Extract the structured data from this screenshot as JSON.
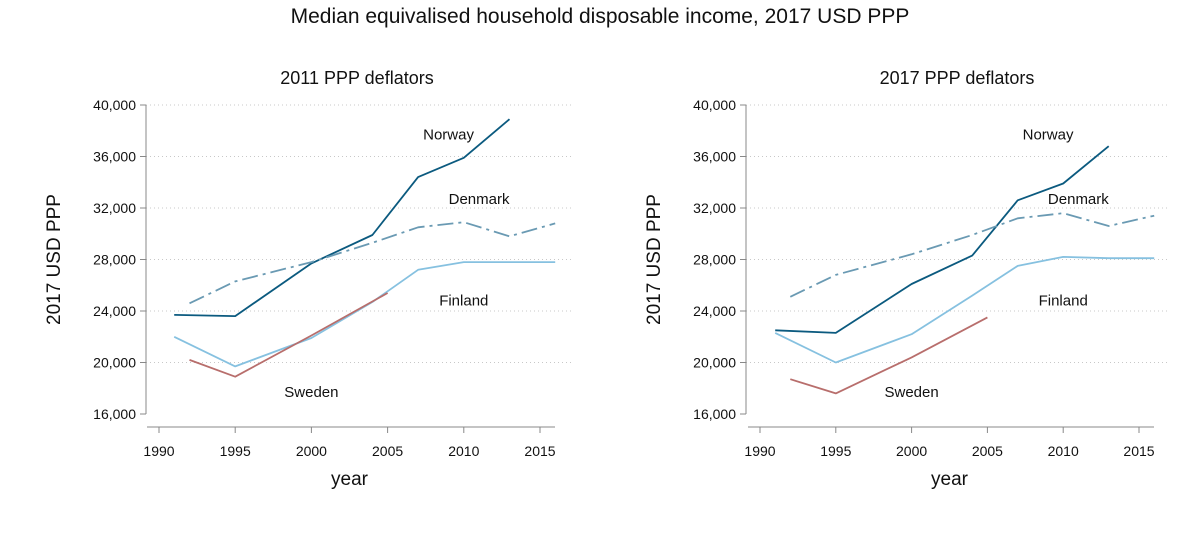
{
  "title": "Median equivalised household disposable income, 2017 USD PPP",
  "chart_data": [
    {
      "type": "line",
      "title": "2011 PPP deflators",
      "xlabel": "year",
      "ylabel": "2017 USD PPP",
      "xlim": [
        1989,
        2017
      ],
      "ylim": [
        16000,
        40000
      ],
      "xticks": [
        1990,
        1995,
        2000,
        2005,
        2010,
        2015
      ],
      "yticks": [
        16000,
        20000,
        24000,
        28000,
        32000,
        36000,
        40000
      ],
      "ytick_labels": [
        "16,000",
        "20,000",
        "24,000",
        "28,000",
        "32,000",
        "36,000",
        "40,000"
      ],
      "grid": "horizontal dotted",
      "series": [
        {
          "name": "Norway",
          "color": "#0b5a7f",
          "dash": "solid",
          "x": [
            1991,
            1995,
            2000,
            2004,
            2007,
            2010,
            2013
          ],
          "y": [
            23700,
            23600,
            27700,
            29900,
            34400,
            35900,
            38900
          ],
          "label_at": [
            2009,
            37700
          ]
        },
        {
          "name": "Denmark",
          "color": "#6a9ab3",
          "dash": "dashdot",
          "x": [
            1992,
            1995,
            2000,
            2004,
            2007,
            2010,
            2013,
            2016
          ],
          "y": [
            24600,
            26300,
            27800,
            29300,
            30500,
            30900,
            29800,
            30800
          ],
          "label_at": [
            2011,
            32700
          ]
        },
        {
          "name": "Finland",
          "color": "#86c1e0",
          "dash": "solid",
          "x": [
            1991,
            1995,
            2000,
            2004,
            2007,
            2010,
            2013,
            2016
          ],
          "y": [
            22000,
            19700,
            21900,
            24700,
            27200,
            27800,
            27800,
            27800
          ],
          "label_at": [
            2010,
            24800
          ]
        },
        {
          "name": "Sweden",
          "color": "#b86e6c",
          "dash": "solid",
          "x": [
            1992,
            1995,
            2000,
            2005
          ],
          "y": [
            20200,
            18900,
            22100,
            25400
          ],
          "label_at": [
            2000,
            17700
          ]
        }
      ]
    },
    {
      "type": "line",
      "title": "2017 PPP deflators",
      "xlabel": "year",
      "ylabel": "2017 USD PPP",
      "xlim": [
        1989,
        2017
      ],
      "ylim": [
        16000,
        40000
      ],
      "xticks": [
        1990,
        1995,
        2000,
        2005,
        2010,
        2015
      ],
      "yticks": [
        16000,
        20000,
        24000,
        28000,
        32000,
        36000,
        40000
      ],
      "ytick_labels": [
        "16,000",
        "20,000",
        "24,000",
        "28,000",
        "32,000",
        "36,000",
        "40,000"
      ],
      "grid": "horizontal dotted",
      "series": [
        {
          "name": "Norway",
          "color": "#0b5a7f",
          "dash": "solid",
          "x": [
            1991,
            1995,
            2000,
            2004,
            2007,
            2010,
            2013
          ],
          "y": [
            22500,
            22300,
            26100,
            28300,
            32600,
            33900,
            36800
          ],
          "label_at": [
            2009,
            37700
          ]
        },
        {
          "name": "Denmark",
          "color": "#6a9ab3",
          "dash": "dashdot",
          "x": [
            1992,
            1995,
            2000,
            2004,
            2007,
            2010,
            2013,
            2016
          ],
          "y": [
            25100,
            26800,
            28400,
            29900,
            31200,
            31600,
            30600,
            31400
          ],
          "label_at": [
            2011,
            32700
          ]
        },
        {
          "name": "Finland",
          "color": "#86c1e0",
          "dash": "solid",
          "x": [
            1991,
            1995,
            2000,
            2004,
            2007,
            2010,
            2013,
            2016
          ],
          "y": [
            22300,
            20000,
            22200,
            25200,
            27500,
            28200,
            28100,
            28100
          ],
          "label_at": [
            2010,
            24800
          ]
        },
        {
          "name": "Sweden",
          "color": "#b86e6c",
          "dash": "solid",
          "x": [
            1992,
            1995,
            2000,
            2005
          ],
          "y": [
            18700,
            17600,
            20400,
            23500
          ],
          "label_at": [
            2000,
            17700
          ]
        }
      ]
    }
  ]
}
